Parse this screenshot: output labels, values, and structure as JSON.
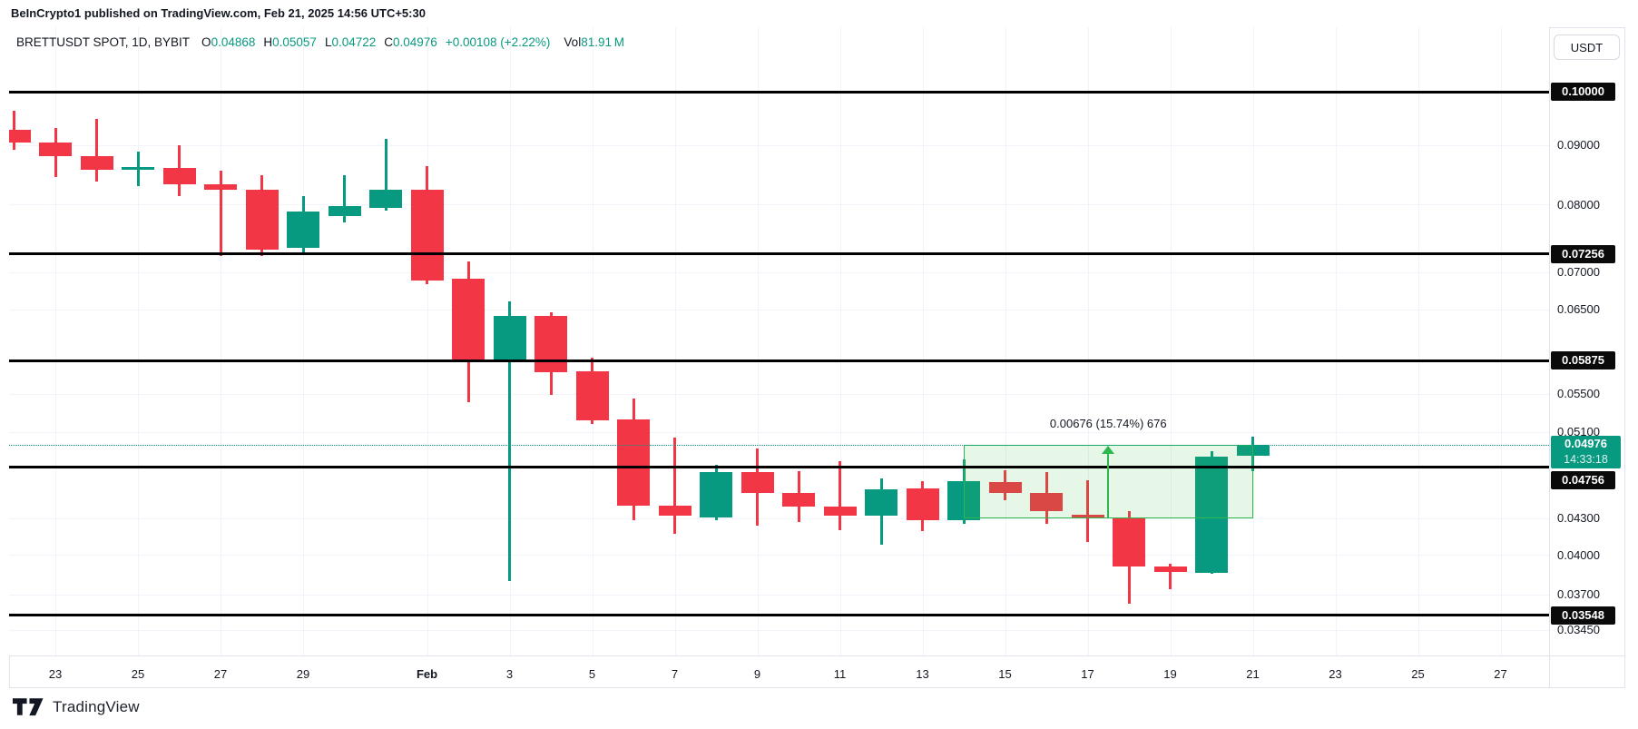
{
  "header": {
    "published_line": "BeInCrypto1 published on TradingView.com, Feb 21, 2025 14:56 UTC+5:30"
  },
  "toolbar": {
    "currency_label": "USDT"
  },
  "legend": {
    "symbol_text": "BRETTUSDT SPOT, 1D, BYBIT",
    "ohlc": [
      {
        "label": "O",
        "value": "0.04868"
      },
      {
        "label": "H",
        "value": "0.05057"
      },
      {
        "label": "L",
        "value": "0.04722"
      },
      {
        "label": "C",
        "value": "0.04976"
      }
    ],
    "change": "+0.00108 (+2.22%)",
    "volume_label": "Vol",
    "volume_value": "81.91 M"
  },
  "price_scale": {
    "ticks": [
      {
        "text": "0.09000",
        "price": 0.09
      },
      {
        "text": "0.08000",
        "price": 0.08
      },
      {
        "text": "0.07000",
        "price": 0.07
      },
      {
        "text": "0.06500",
        "price": 0.065
      },
      {
        "text": "0.05500",
        "price": 0.055
      },
      {
        "text": "0.05100",
        "price": 0.051
      },
      {
        "text": "0.04300",
        "price": 0.043
      },
      {
        "text": "0.04000",
        "price": 0.04
      },
      {
        "text": "0.03700",
        "price": 0.037
      },
      {
        "text": "0.03450",
        "price": 0.0345
      }
    ],
    "line_labels": [
      {
        "text": "0.10000",
        "price": 0.1,
        "dy": 0
      },
      {
        "text": "0.07256",
        "price": 0.07256,
        "dy": 0
      },
      {
        "text": "0.05875",
        "price": 0.05875,
        "dy": 0
      },
      {
        "text": "0.04756",
        "price": 0.04756,
        "dy": 14
      },
      {
        "text": "0.03548",
        "price": 0.03548,
        "dy": 0
      }
    ],
    "current": {
      "price_text": "0.04976",
      "countdown": "14:33:18",
      "price": 0.04976
    }
  },
  "time_scale": {
    "labels": [
      {
        "text": "23",
        "day": 1,
        "bold": false
      },
      {
        "text": "25",
        "day": 3,
        "bold": false
      },
      {
        "text": "27",
        "day": 5,
        "bold": false
      },
      {
        "text": "29",
        "day": 7,
        "bold": false
      },
      {
        "text": "Feb",
        "day": 10,
        "bold": true
      },
      {
        "text": "3",
        "day": 12,
        "bold": false
      },
      {
        "text": "5",
        "day": 14,
        "bold": false
      },
      {
        "text": "7",
        "day": 16,
        "bold": false
      },
      {
        "text": "9",
        "day": 18,
        "bold": false
      },
      {
        "text": "11",
        "day": 20,
        "bold": false
      },
      {
        "text": "13",
        "day": 22,
        "bold": false
      },
      {
        "text": "15",
        "day": 24,
        "bold": false
      },
      {
        "text": "17",
        "day": 26,
        "bold": false
      },
      {
        "text": "19",
        "day": 28,
        "bold": false
      },
      {
        "text": "21",
        "day": 30,
        "bold": false
      },
      {
        "text": "23",
        "day": 32,
        "bold": false
      },
      {
        "text": "25",
        "day": 34,
        "bold": false
      },
      {
        "text": "27",
        "day": 36,
        "bold": false
      }
    ]
  },
  "chart_data": {
    "type": "candlestick",
    "title": "BRETTUSDT SPOT, 1D, BYBIT",
    "exchange": "BYBIT",
    "interval": "1D",
    "price_scale_type": "logarithmic",
    "x_range": [
      "Jan 22",
      "Feb 27"
    ],
    "candles": [
      {
        "date": "Jan 22",
        "o": 0.0927,
        "h": 0.0963,
        "l": 0.0891,
        "c": 0.0904
      },
      {
        "date": "Jan 23",
        "o": 0.0904,
        "h": 0.0931,
        "l": 0.0845,
        "c": 0.088
      },
      {
        "date": "Jan 24",
        "o": 0.088,
        "h": 0.0947,
        "l": 0.0837,
        "c": 0.0857
      },
      {
        "date": "Jan 25",
        "o": 0.0857,
        "h": 0.0888,
        "l": 0.0829,
        "c": 0.0861
      },
      {
        "date": "Jan 26",
        "o": 0.086,
        "h": 0.0899,
        "l": 0.0813,
        "c": 0.0832
      },
      {
        "date": "Jan 27",
        "o": 0.0832,
        "h": 0.0856,
        "l": 0.0722,
        "c": 0.0823
      },
      {
        "date": "Jan 28",
        "o": 0.0823,
        "h": 0.0847,
        "l": 0.0722,
        "c": 0.0732
      },
      {
        "date": "Jan 29",
        "o": 0.0734,
        "h": 0.0813,
        "l": 0.0727,
        "c": 0.0789
      },
      {
        "date": "Jan 30",
        "o": 0.0782,
        "h": 0.0848,
        "l": 0.0772,
        "c": 0.0798
      },
      {
        "date": "Jan 31",
        "o": 0.0794,
        "h": 0.0911,
        "l": 0.079,
        "c": 0.0823
      },
      {
        "date": "Feb 1",
        "o": 0.0823,
        "h": 0.0863,
        "l": 0.0683,
        "c": 0.0688
      },
      {
        "date": "Feb 2",
        "o": 0.0691,
        "h": 0.0715,
        "l": 0.0541,
        "c": 0.0586
      },
      {
        "date": "Feb 3",
        "o": 0.0586,
        "h": 0.066,
        "l": 0.038,
        "c": 0.0642
      },
      {
        "date": "Feb 4",
        "o": 0.0642,
        "h": 0.0646,
        "l": 0.0549,
        "c": 0.0574
      },
      {
        "date": "Feb 5",
        "o": 0.0575,
        "h": 0.0591,
        "l": 0.0518,
        "c": 0.0522
      },
      {
        "date": "Feb 6",
        "o": 0.0523,
        "h": 0.0545,
        "l": 0.0428,
        "c": 0.0441
      },
      {
        "date": "Feb 7",
        "o": 0.0441,
        "h": 0.0504,
        "l": 0.0417,
        "c": 0.0432
      },
      {
        "date": "Feb 8",
        "o": 0.0431,
        "h": 0.0478,
        "l": 0.0428,
        "c": 0.0471
      },
      {
        "date": "Feb 9",
        "o": 0.0471,
        "h": 0.0494,
        "l": 0.0424,
        "c": 0.0452
      },
      {
        "date": "Feb 10",
        "o": 0.0452,
        "h": 0.0472,
        "l": 0.0427,
        "c": 0.044
      },
      {
        "date": "Feb 11",
        "o": 0.044,
        "h": 0.0481,
        "l": 0.042,
        "c": 0.0432
      },
      {
        "date": "Feb 12",
        "o": 0.0432,
        "h": 0.0465,
        "l": 0.0408,
        "c": 0.0455
      },
      {
        "date": "Feb 13",
        "o": 0.0456,
        "h": 0.0463,
        "l": 0.0419,
        "c": 0.0428
      },
      {
        "date": "Feb 14",
        "o": 0.0428,
        "h": 0.0483,
        "l": 0.0425,
        "c": 0.0463
      },
      {
        "date": "Feb 15",
        "o": 0.0462,
        "h": 0.0473,
        "l": 0.0446,
        "c": 0.0452
      },
      {
        "date": "Feb 16",
        "o": 0.0452,
        "h": 0.0471,
        "l": 0.0425,
        "c": 0.0436
      },
      {
        "date": "Feb 17",
        "o": 0.0433,
        "h": 0.0464,
        "l": 0.041,
        "c": 0.043
      },
      {
        "date": "Feb 18",
        "o": 0.043,
        "h": 0.0436,
        "l": 0.0363,
        "c": 0.0391
      },
      {
        "date": "Feb 19",
        "o": 0.0391,
        "h": 0.0393,
        "l": 0.0374,
        "c": 0.0387
      },
      {
        "date": "Feb 20",
        "o": 0.0386,
        "h": 0.0491,
        "l": 0.0385,
        "c": 0.0486
      },
      {
        "date": "Feb 21",
        "o": 0.04868,
        "h": 0.05057,
        "l": 0.04722,
        "c": 0.04976
      }
    ],
    "horizontal_lines": [
      0.1,
      0.07256,
      0.05875,
      0.04756,
      0.03548
    ],
    "current_price": 0.04976,
    "measurement": {
      "label": "0.00676 (15.74%) 676",
      "from_date": "Feb 14",
      "to_date": "Feb 21",
      "from_price": 0.043,
      "to_price": 0.04976
    }
  },
  "footer": {
    "logo_text": "TradingView"
  },
  "colors": {
    "up": "#089981",
    "down": "#f23645",
    "level_line": "#000000",
    "measure_green": "#2db84d",
    "badge_bg": "#0a0a0a",
    "current_badge_bg": "#089981",
    "grid": "#f0f3fa"
  }
}
